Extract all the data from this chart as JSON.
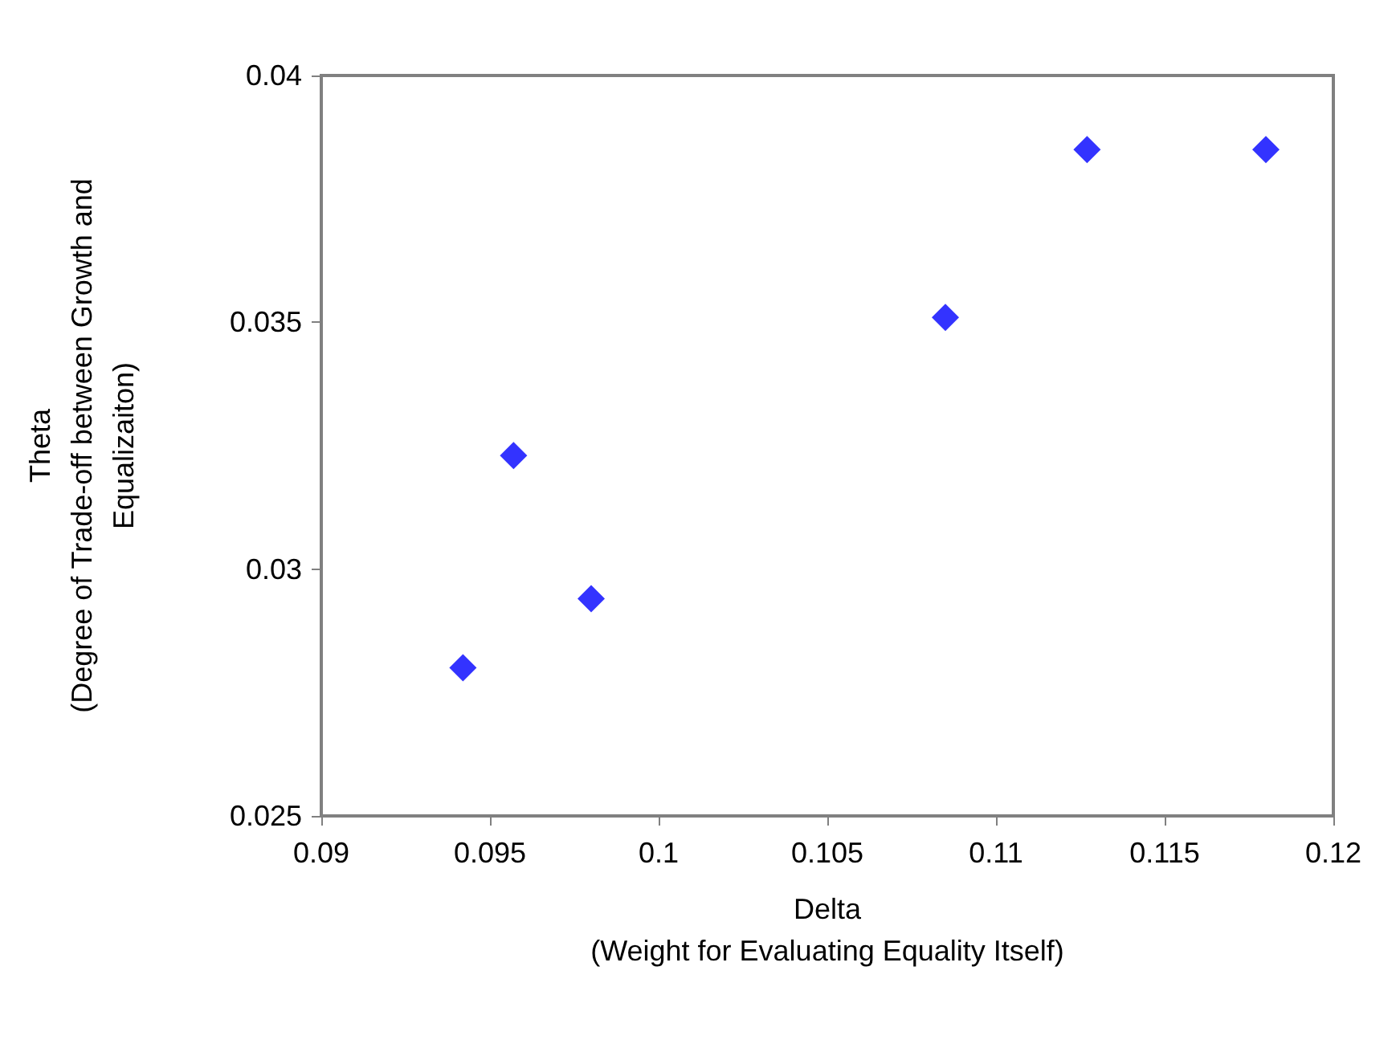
{
  "chart_data": {
    "type": "scatter",
    "xlabel": "Delta\n(Weight for Evaluating Equality Itself)",
    "ylabel": "Theta\n(Degree of Trade-off between Growth and\nEqualizaiton)",
    "x": [
      0.0942,
      0.0957,
      0.098,
      0.1085,
      0.1127,
      0.118
    ],
    "series": [
      {
        "color": "#0000ff",
        "values": [
          0.028,
          0.0323,
          0.0294,
          0.0351,
          0.0385,
          0.0385
        ]
      }
    ],
    "xlim": [
      0.09,
      0.12
    ],
    "xticks": [
      0.09,
      0.095,
      0.1,
      0.105,
      0.11,
      0.115,
      0.12
    ],
    "ylim": [
      0.025,
      0.04
    ],
    "yticks": [
      0.025,
      0.03,
      0.035,
      0.04
    ],
    "marker": "diamond"
  }
}
